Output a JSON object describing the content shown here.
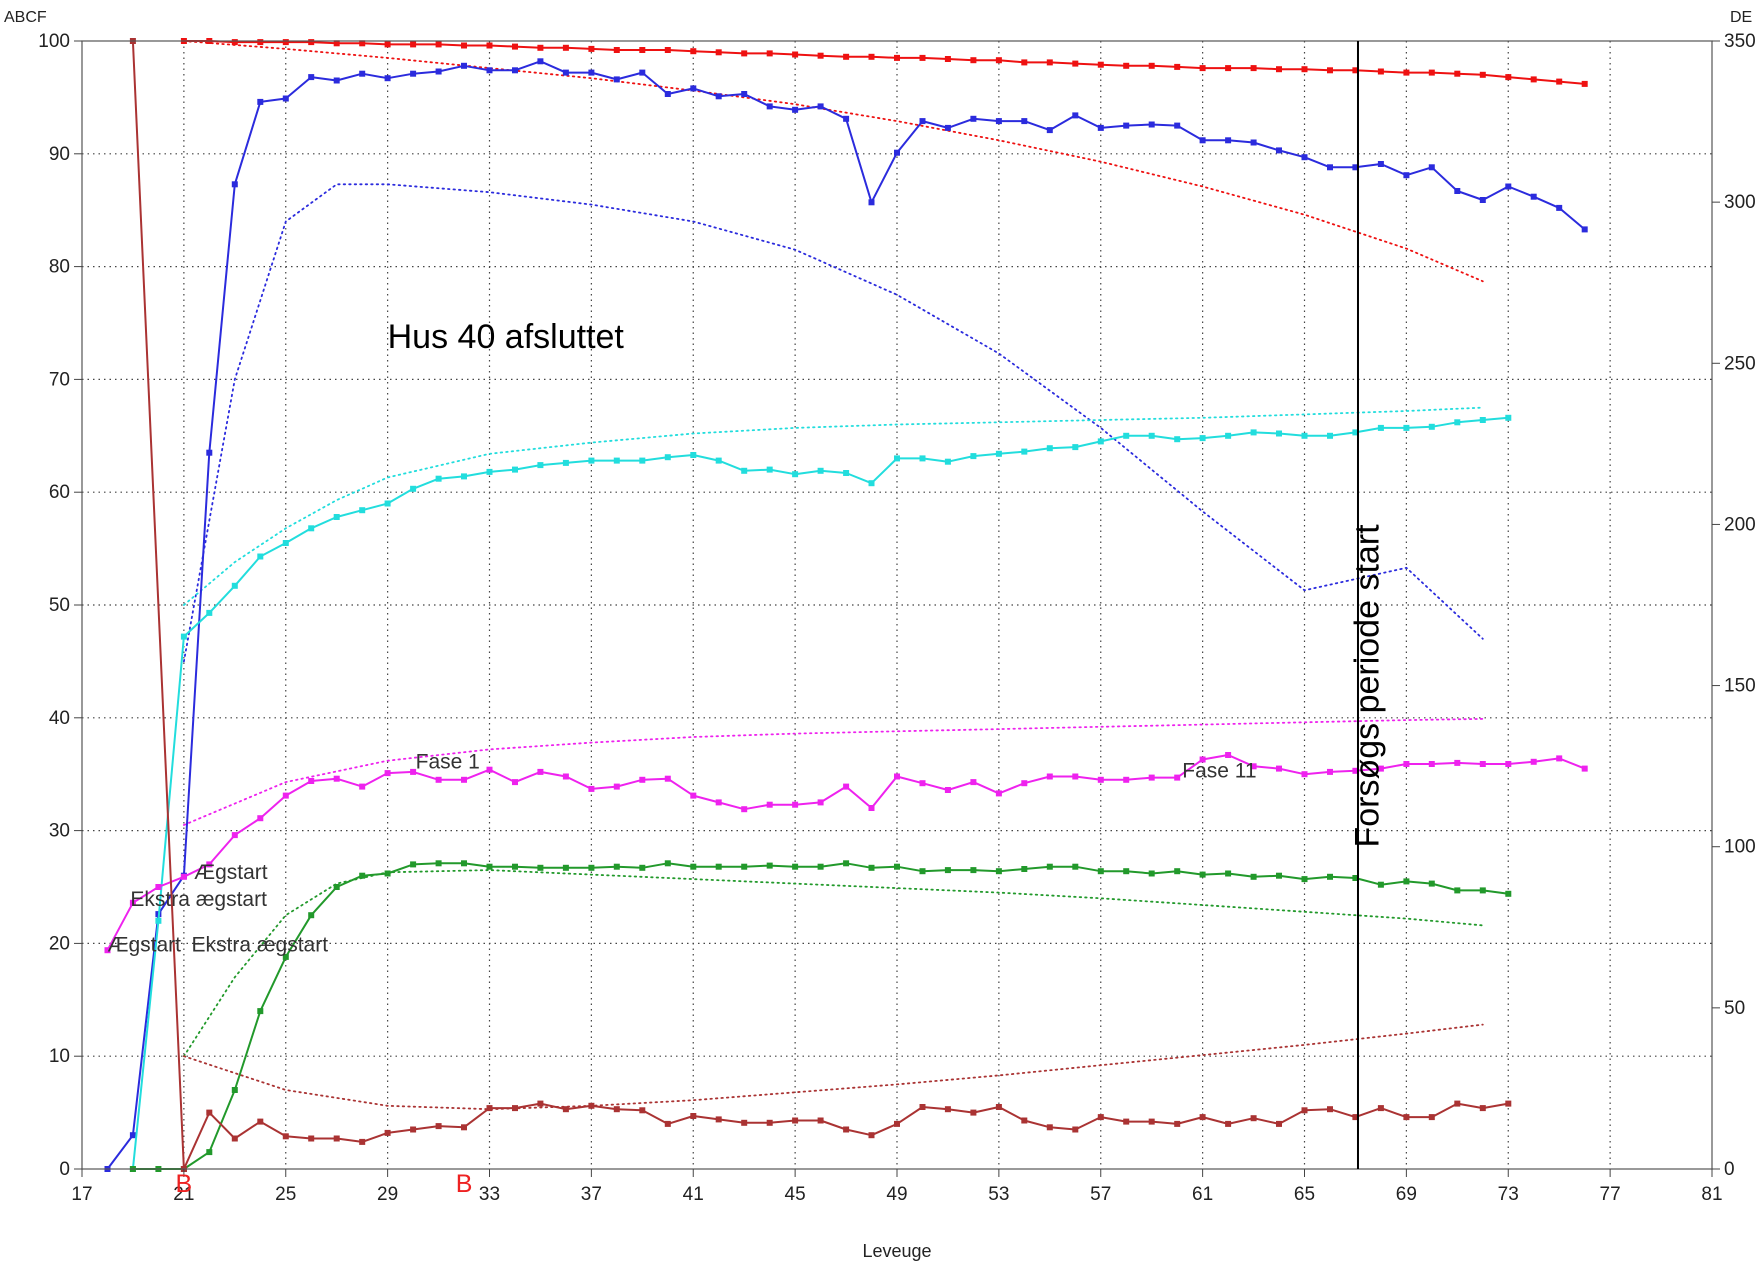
{
  "chart_data": {
    "type": "line",
    "title": "",
    "xlabel": "Leveuge",
    "ylabel_left": "ABCF",
    "ylabel_right": "DE",
    "xlim": [
      17,
      81
    ],
    "ylim": [
      0,
      100
    ],
    "y2lim": [
      0,
      350
    ],
    "x_ticks": [
      17,
      21,
      25,
      29,
      33,
      37,
      41,
      45,
      49,
      53,
      57,
      61,
      65,
      69,
      73,
      77,
      81
    ],
    "y_ticks": [
      0,
      10,
      20,
      30,
      40,
      50,
      60,
      70,
      80,
      90,
      100
    ],
    "y2_ticks": [
      0,
      50,
      100,
      150,
      200,
      250,
      300,
      350
    ],
    "grid": true,
    "series": [
      {
        "name": "",
        "color": "#ee1111",
        "axis": "left",
        "marker": "square",
        "x": [
          21,
          22,
          23,
          24,
          25,
          26,
          27,
          28,
          29,
          30,
          31,
          32,
          33,
          34,
          35,
          36,
          37,
          38,
          39,
          40,
          41,
          42,
          43,
          44,
          45,
          46,
          47,
          48,
          49,
          50,
          51,
          52,
          53,
          54,
          55,
          56,
          57,
          58,
          59,
          60,
          61,
          62,
          63,
          64,
          65,
          66,
          67,
          68,
          69,
          70,
          71,
          72,
          73,
          74,
          75,
          76
        ],
        "values": [
          100,
          100,
          99.9,
          99.9,
          99.9,
          99.9,
          99.8,
          99.8,
          99.7,
          99.7,
          99.7,
          99.6,
          99.6,
          99.5,
          99.4,
          99.4,
          99.3,
          99.2,
          99.2,
          99.2,
          99.1,
          99,
          98.9,
          98.9,
          98.8,
          98.7,
          98.6,
          98.6,
          98.5,
          98.5,
          98.4,
          98.3,
          98.3,
          98.1,
          98.1,
          98.0,
          97.9,
          97.8,
          97.8,
          97.7,
          97.6,
          97.6,
          97.6,
          97.5,
          97.5,
          97.4,
          97.4,
          97.3,
          97.2,
          97.2,
          97.1,
          97.0,
          96.8,
          96.6,
          96.4,
          96.2
        ]
      },
      {
        "name": "",
        "color": "#2b2bdd",
        "axis": "left",
        "marker": "square",
        "x": [
          18,
          19,
          20,
          21,
          22,
          23,
          24,
          25,
          26,
          27,
          28,
          29,
          30,
          31,
          32,
          33,
          34,
          35,
          36,
          37,
          38,
          39,
          40,
          41,
          42,
          43,
          44,
          45,
          46,
          47,
          48,
          49,
          50,
          51,
          52,
          53,
          54,
          55,
          56,
          57,
          58,
          59,
          60,
          61,
          62,
          63,
          64,
          65,
          66,
          67,
          68,
          69,
          70,
          71,
          72,
          73,
          74,
          75,
          76
        ],
        "values": [
          0,
          3,
          22.6,
          26,
          63.5,
          87.3,
          94.6,
          94.9,
          96.8,
          96.5,
          97.1,
          96.7,
          97.1,
          97.3,
          97.8,
          97.4,
          97.4,
          98.2,
          97.2,
          97.2,
          96.6,
          97.2,
          95.3,
          95.8,
          95.1,
          95.3,
          94.2,
          93.9,
          94.2,
          93.1,
          85.7,
          90.1,
          92.9,
          92.3,
          93.1,
          92.9,
          92.9,
          92.1,
          93.4,
          92.3,
          92.5,
          92.6,
          92.5,
          91.2,
          91.2,
          91.0,
          90.3,
          89.7,
          88.8,
          88.8,
          89.1,
          88.1,
          88.8,
          86.7,
          85.9,
          87.1,
          86.2,
          85.2,
          83.3
        ]
      },
      {
        "name": "",
        "color": "#22dddd",
        "axis": "left",
        "marker": "square",
        "x": [
          19,
          20,
          21,
          22,
          23,
          24,
          25,
          26,
          27,
          28,
          29,
          30,
          31,
          32,
          33,
          34,
          35,
          36,
          37,
          38,
          39,
          40,
          41,
          42,
          43,
          44,
          45,
          46,
          47,
          48,
          49,
          50,
          51,
          52,
          53,
          54,
          55,
          56,
          57,
          58,
          59,
          60,
          61,
          62,
          63,
          64,
          65,
          66,
          67,
          68,
          69,
          70,
          71,
          72,
          73
        ],
        "values": [
          0,
          22,
          47.2,
          49.3,
          51.7,
          54.3,
          55.5,
          56.8,
          57.8,
          58.4,
          59,
          60.3,
          61.2,
          61.4,
          61.8,
          62,
          62.4,
          62.6,
          62.8,
          62.8,
          62.8,
          63.1,
          63.3,
          62.8,
          61.9,
          62,
          61.6,
          61.9,
          61.7,
          60.8,
          63,
          63,
          62.7,
          63.2,
          63.4,
          63.6,
          63.9,
          64,
          64.5,
          65,
          65,
          64.7,
          64.8,
          65,
          65.3,
          65.2,
          65,
          65,
          65.3,
          65.7,
          65.7,
          65.8,
          66.2,
          66.4,
          66.6
        ]
      },
      {
        "name": "",
        "color": "#ee22ee",
        "axis": "left",
        "marker": "square",
        "x": [
          18,
          19,
          20,
          21,
          22,
          23,
          24,
          25,
          26,
          27,
          28,
          29,
          30,
          31,
          32,
          33,
          34,
          35,
          36,
          37,
          38,
          39,
          40,
          41,
          42,
          43,
          44,
          45,
          46,
          47,
          48,
          49,
          50,
          51,
          52,
          53,
          54,
          55,
          56,
          57,
          58,
          59,
          60,
          61,
          62,
          63,
          64,
          65,
          66,
          67,
          68,
          69,
          70,
          71,
          72,
          73,
          74,
          75,
          76
        ],
        "values": [
          19.4,
          23.6,
          25,
          25.9,
          27,
          29.6,
          31.1,
          33.1,
          34.4,
          34.6,
          33.9,
          35.1,
          35.2,
          34.5,
          34.5,
          35.4,
          34.3,
          35.2,
          34.8,
          33.7,
          33.9,
          34.5,
          34.6,
          33.1,
          32.5,
          31.9,
          32.3,
          32.3,
          32.5,
          33.9,
          32,
          34.8,
          34.2,
          33.6,
          34.3,
          33.3,
          34.2,
          34.8,
          34.8,
          34.5,
          34.5,
          34.7,
          34.7,
          36.3,
          36.7,
          35.7,
          35.5,
          35,
          35.2,
          35.3,
          35.5,
          35.9,
          35.9,
          36,
          35.9,
          35.9,
          36.1,
          36.4,
          35.5
        ]
      },
      {
        "name": "",
        "color": "#22992b",
        "axis": "left",
        "marker": "square",
        "x": [
          19,
          20,
          21,
          22,
          23,
          24,
          25,
          26,
          27,
          28,
          29,
          30,
          31,
          32,
          33,
          34,
          35,
          36,
          37,
          38,
          39,
          40,
          41,
          42,
          43,
          44,
          45,
          46,
          47,
          48,
          49,
          50,
          51,
          52,
          53,
          54,
          55,
          56,
          57,
          58,
          59,
          60,
          61,
          62,
          63,
          64,
          65,
          66,
          67,
          68,
          69,
          70,
          71,
          72,
          73
        ],
        "values": [
          0,
          0,
          0,
          1.5,
          7,
          14,
          18.8,
          22.5,
          25,
          26,
          26.2,
          27,
          27.1,
          27.1,
          26.8,
          26.8,
          26.7,
          26.7,
          26.7,
          26.8,
          26.7,
          27.1,
          26.8,
          26.8,
          26.8,
          26.9,
          26.8,
          26.8,
          27.1,
          26.7,
          26.8,
          26.4,
          26.5,
          26.5,
          26.4,
          26.6,
          26.8,
          26.8,
          26.4,
          26.4,
          26.2,
          26.4,
          26.1,
          26.2,
          25.9,
          26,
          25.7,
          25.9,
          25.8,
          25.2,
          25.5,
          25.3,
          24.7,
          24.7,
          24.4
        ]
      },
      {
        "name": "",
        "color": "#aa3333",
        "axis": "left",
        "marker": "square",
        "x": [
          19,
          21,
          22,
          23,
          24,
          25,
          26,
          27,
          28,
          29,
          30,
          31,
          32,
          33,
          34,
          35,
          36,
          37,
          38,
          39,
          40,
          41,
          42,
          43,
          44,
          45,
          46,
          47,
          48,
          49,
          50,
          51,
          52,
          53,
          54,
          55,
          56,
          57,
          58,
          59,
          60,
          61,
          62,
          63,
          64,
          65,
          66,
          67,
          68,
          69,
          70,
          71,
          72,
          73
        ],
        "values": [
          100,
          0,
          5,
          2.7,
          4.2,
          2.9,
          2.7,
          2.7,
          2.4,
          3.2,
          3.5,
          3.8,
          3.7,
          5.4,
          5.4,
          5.8,
          5.3,
          5.6,
          5.3,
          5.2,
          4,
          4.7,
          4.4,
          4.1,
          4.1,
          4.3,
          4.3,
          3.5,
          3,
          4,
          5.5,
          5.3,
          5,
          5.5,
          4.3,
          3.7,
          3.5,
          4.6,
          4.2,
          4.2,
          4,
          4.6,
          4,
          4.5,
          4,
          5.2,
          5.3,
          4.6,
          5.4,
          4.6,
          4.6,
          5.8,
          5.4,
          5.8
        ]
      }
    ],
    "reference_curves": [
      {
        "color": "#ee1111",
        "axis": "left",
        "style": "dotted",
        "x": [
          21,
          25,
          29,
          33,
          37,
          41,
          45,
          49,
          53,
          57,
          61,
          65,
          69,
          72
        ],
        "values": [
          100,
          99.3,
          98.5,
          97.6,
          96.7,
          95.6,
          94.4,
          92.9,
          91.2,
          89.3,
          87.1,
          84.6,
          81.6,
          78.7
        ]
      },
      {
        "color": "#2b2bdd",
        "axis": "left",
        "style": "dotted",
        "x": [
          21,
          23,
          25,
          27,
          29,
          33,
          37,
          41,
          45,
          49,
          53,
          57,
          61,
          65,
          69,
          72
        ],
        "values": [
          45,
          70,
          84,
          87.3,
          87.3,
          86.6,
          85.5,
          84,
          81.5,
          77.5,
          72.3,
          65.7,
          58.3,
          51.3,
          53.3,
          47
        ]
      },
      {
        "color": "#22dddd",
        "axis": "left",
        "style": "dotted",
        "x": [
          21,
          23,
          25,
          27,
          29,
          33,
          37,
          41,
          45,
          49,
          53,
          57,
          61,
          65,
          69,
          72
        ],
        "values": [
          50,
          53.8,
          56.8,
          59.3,
          61.3,
          63.4,
          64.4,
          65.2,
          65.7,
          66,
          66.2,
          66.4,
          66.6,
          66.9,
          67.2,
          67.5
        ]
      },
      {
        "color": "#ee22ee",
        "axis": "left",
        "style": "dotted",
        "x": [
          21,
          25,
          29,
          33,
          37,
          41,
          45,
          49,
          53,
          57,
          61,
          65,
          69,
          72
        ],
        "values": [
          30.5,
          34.3,
          36.2,
          37.2,
          37.8,
          38.3,
          38.6,
          38.8,
          39,
          39.2,
          39.4,
          39.6,
          39.8,
          39.9
        ]
      },
      {
        "color": "#22992b",
        "axis": "left",
        "style": "dotted",
        "x": [
          21,
          23,
          25,
          27,
          29,
          33,
          37,
          41,
          45,
          49,
          53,
          57,
          61,
          65,
          69,
          72
        ],
        "values": [
          10,
          17,
          22.5,
          25.3,
          26.3,
          26.5,
          26.1,
          25.7,
          25.3,
          24.9,
          24.5,
          24.0,
          23.4,
          22.8,
          22.2,
          21.6
        ]
      },
      {
        "color": "#aa3333",
        "axis": "left",
        "style": "dotted",
        "x": [
          21,
          25,
          29,
          33,
          37,
          41,
          45,
          49,
          53,
          57,
          61,
          65,
          69,
          72
        ],
        "values": [
          10,
          7,
          5.6,
          5.3,
          5.6,
          6.1,
          6.8,
          7.5,
          8.3,
          9.2,
          10.1,
          11,
          12,
          12.8
        ]
      }
    ],
    "x_markers": [
      {
        "x": 21,
        "label": "B",
        "color": "#ee2222"
      },
      {
        "x": 32,
        "label": "B",
        "color": "#ee2222"
      }
    ],
    "vertical_line": {
      "x": 67.1,
      "color": "#000000"
    },
    "annotations": [
      {
        "text": "Hus 40 afsluttet",
        "x": 29,
        "y": 72.8,
        "size": 34,
        "color": "#000000",
        "rotate": 0
      },
      {
        "text": "Forsøgs periode start",
        "x": 67.9,
        "y": 28.5,
        "size": 34,
        "color": "#000000",
        "rotate": -90
      },
      {
        "text": "Fase 1",
        "x": 30.1,
        "y": 35.5,
        "size": 21,
        "color": "#333333",
        "rotate": 0
      },
      {
        "text": "Fase 11",
        "x": 60.2,
        "y": 34.7,
        "size": 21,
        "color": "#333333",
        "rotate": 0
      },
      {
        "text": "Ægstart",
        "x": 21.4,
        "y": 25.7,
        "size": 21,
        "color": "#333333",
        "rotate": 0
      },
      {
        "text": "Ekstra ægstart",
        "x": 18.9,
        "y": 23.3,
        "size": 21,
        "color": "#333333",
        "rotate": 0
      },
      {
        "text": "Ekstra ægstart",
        "x": 21.3,
        "y": 19.3,
        "size": 21,
        "color": "#333333",
        "rotate": 0
      },
      {
        "text": "Ægstart",
        "x": 18.0,
        "y": 19.3,
        "size": 21,
        "color": "#333333",
        "rotate": 0
      }
    ]
  }
}
